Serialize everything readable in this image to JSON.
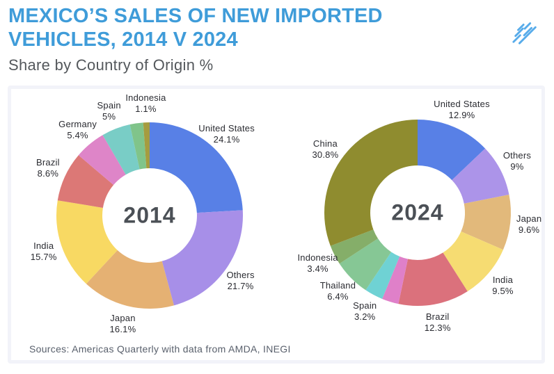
{
  "header": {
    "title_line1": "MEXICO’S SALES OF NEW IMPORTED",
    "title_line2": "VEHICLES, 2014 V 2024",
    "subtitle": "Share by Country of Origin %",
    "title_color": "#3F9CD9",
    "subtitle_color": "#54585C"
  },
  "logo": {
    "description": "diagonal-hatch-mark",
    "color": "#58ACEA"
  },
  "source_note": "Sources: Americas Quarterly with data from AMDA, INEGI",
  "palette": {
    "card_border": "#F2F3F9",
    "center_year_color": "#4B5056",
    "label_color": "#2A2B31"
  },
  "chart_data": [
    {
      "type": "pie",
      "style": "donut",
      "center_label": "2014",
      "legend_position": "outside-labels",
      "segments": [
        {
          "label": "United States",
          "pct_label": "24.1%",
          "value": 24.1,
          "color": "#5880E6"
        },
        {
          "label": "Others",
          "pct_label": "21.7%",
          "value": 21.7,
          "color": "#A78FE8"
        },
        {
          "label": "Japan",
          "pct_label": "16.1%",
          "value": 16.1,
          "color": "#E5B173"
        },
        {
          "label": "India",
          "pct_label": "15.7%",
          "value": 15.7,
          "color": "#F8D963"
        },
        {
          "label": "Brazil",
          "pct_label": "8.6%",
          "value": 8.6,
          "color": "#DC7876"
        },
        {
          "label": "Germany",
          "pct_label": "5.4%",
          "value": 5.4,
          "color": "#DE85C8"
        },
        {
          "label": "Spain",
          "pct_label": "5%",
          "value": 5.0,
          "color": "#79CDC6"
        },
        {
          "label": "",
          "pct_label": "",
          "value": 2.3,
          "color": "#80C48A"
        },
        {
          "label": "Indonesia",
          "pct_label": "1.1%",
          "value": 1.1,
          "color": "#A59C3F"
        }
      ]
    },
    {
      "type": "pie",
      "style": "donut",
      "center_label": "2024",
      "legend_position": "outside-labels",
      "segments": [
        {
          "label": "United States",
          "pct_label": "12.9%",
          "value": 12.9,
          "color": "#5880E6"
        },
        {
          "label": "Others",
          "pct_label": "9%",
          "value": 9.0,
          "color": "#AC94E9"
        },
        {
          "label": "Japan",
          "pct_label": "9.6%",
          "value": 9.6,
          "color": "#E2B97B"
        },
        {
          "label": "India",
          "pct_label": "9.5%",
          "value": 9.5,
          "color": "#F6DC72"
        },
        {
          "label": "Brazil",
          "pct_label": "12.3%",
          "value": 12.3,
          "color": "#DB717C"
        },
        {
          "label": "",
          "pct_label": "",
          "value": 2.9,
          "color": "#DF80C9"
        },
        {
          "label": "Spain",
          "pct_label": "3.2%",
          "value": 3.2,
          "color": "#6FD2D4"
        },
        {
          "label": "Thailand",
          "pct_label": "6.4%",
          "value": 6.4,
          "color": "#86C795"
        },
        {
          "label": "Indonesia",
          "pct_label": "3.4%",
          "value": 3.4,
          "color": "#85AE69"
        },
        {
          "label": "China",
          "pct_label": "30.8%",
          "value": 30.8,
          "color": "#8F8C2F"
        }
      ]
    }
  ]
}
